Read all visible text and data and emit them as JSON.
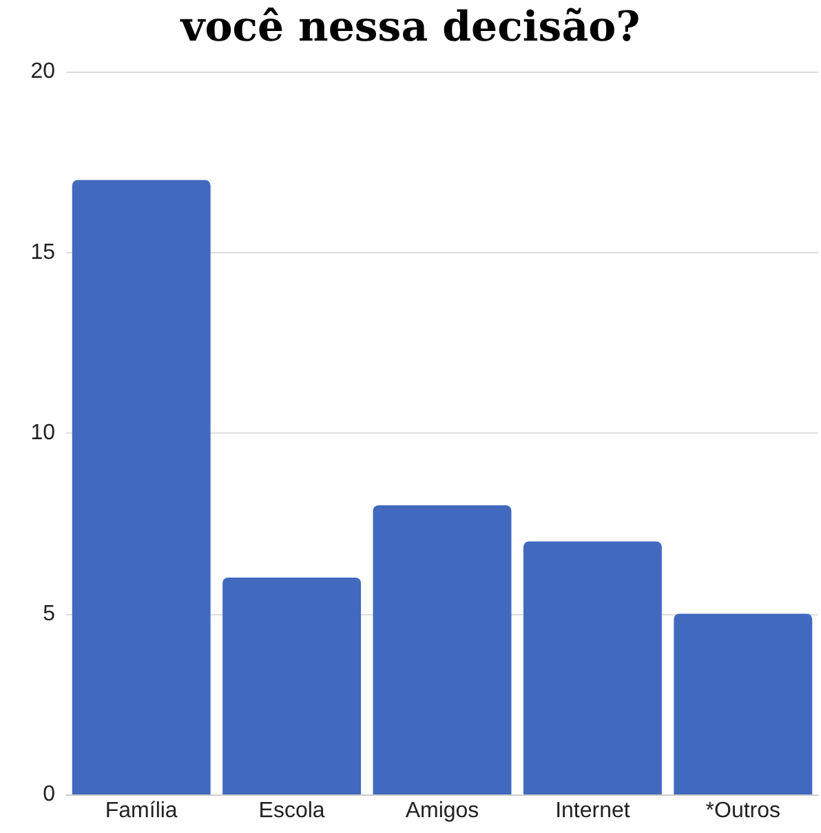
{
  "chart_data": {
    "type": "bar",
    "title": "você nessa decisão?",
    "categories": [
      "Família",
      "Escola",
      "Amigos",
      "Internet",
      "*Outros"
    ],
    "values": [
      17,
      6,
      8,
      7,
      5
    ],
    "color": "#4169bd",
    "ylim": [
      0,
      20
    ],
    "yticks": [
      0,
      5,
      10,
      15,
      20
    ],
    "grid": "y"
  }
}
